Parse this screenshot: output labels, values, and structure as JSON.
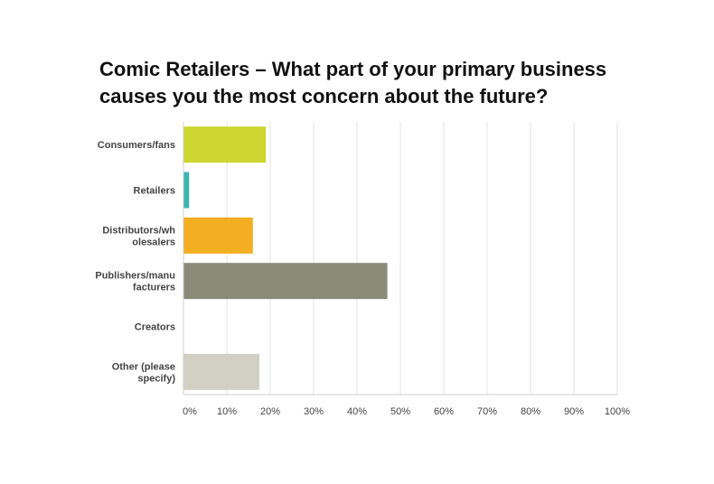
{
  "title_lines": [
    "Comic Retailers – What part of your primary business",
    "causes you the most concern about the future?"
  ],
  "chart_data": {
    "type": "bar",
    "orientation": "horizontal",
    "categories": [
      [
        "Consumers/fans"
      ],
      [
        "Retailers"
      ],
      [
        "Distributors/wh",
        "olesalers"
      ],
      [
        "Publishers/manu",
        "facturers"
      ],
      [
        "Creators"
      ],
      [
        "Other (please",
        "specify)"
      ]
    ],
    "values": [
      19,
      1.3,
      16,
      47,
      0,
      17.5
    ],
    "colors": [
      "#cdd630",
      "#3bb5b3",
      "#f3ae22",
      "#8a8b79",
      "#cccccc",
      "#d2d0c2"
    ],
    "xlim": [
      0,
      100
    ],
    "x_ticks": [
      0,
      10,
      20,
      30,
      40,
      50,
      60,
      70,
      80,
      90,
      100
    ],
    "x_tick_labels": [
      "0%",
      "10%",
      "20%",
      "30%",
      "40%",
      "50%",
      "60%",
      "70%",
      "80%",
      "90%",
      "100%"
    ],
    "grid": true,
    "legend": "none"
  }
}
